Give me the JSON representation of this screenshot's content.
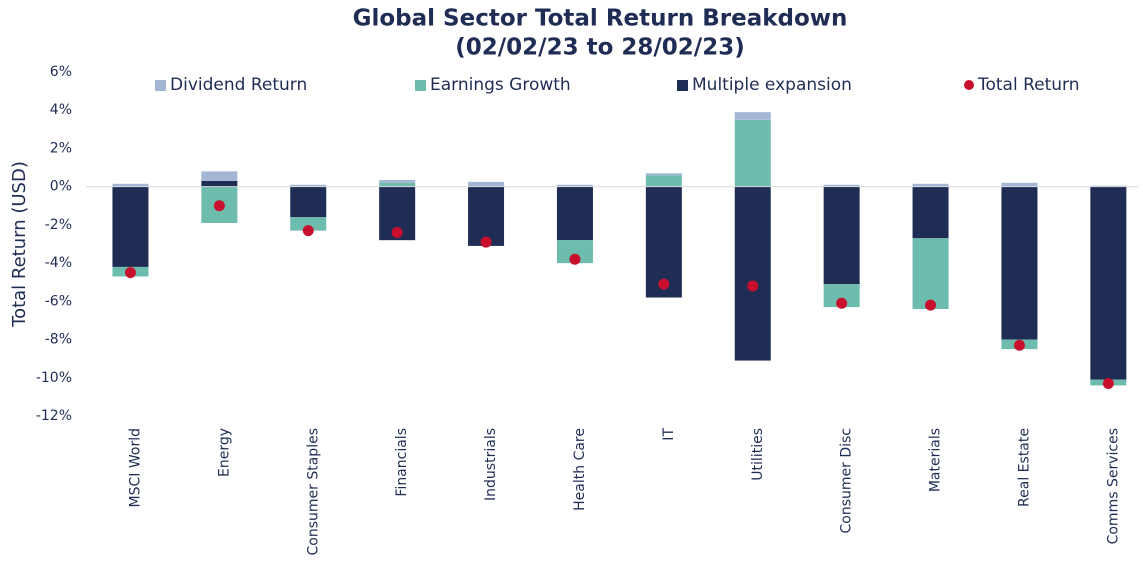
{
  "chart_data": {
    "type": "bar",
    "stacked": true,
    "title": "Global Sector Total Return Breakdown",
    "subtitle": "(02/02/23 to 28/02/23)",
    "y_label": "Total Return (USD)",
    "categories": [
      "MSCI World",
      "Energy",
      "Consumer Staples",
      "Financials",
      "Industrials",
      "Health Care",
      "IT",
      "Utilities",
      "Consumer Disc",
      "Materials",
      "Real Estate",
      "Comms Services"
    ],
    "series": [
      {
        "name": "Dividend Return",
        "color": "#a3b6d4",
        "values": [
          0.15,
          0.5,
          0.1,
          0.15,
          0.25,
          0.1,
          0.1,
          0.4,
          0.1,
          0.15,
          0.2,
          0.05
        ]
      },
      {
        "name": "Earnings Growth",
        "color": "#6dbcad",
        "values": [
          -0.5,
          -1.9,
          -0.7,
          0.2,
          0,
          -1.2,
          0.6,
          3.5,
          -1.2,
          -3.7,
          -0.5,
          -0.3
        ]
      },
      {
        "name": "Multiple expansion",
        "color": "#1f2d55",
        "values": [
          -4.2,
          0.3,
          -1.6,
          -2.8,
          -3.1,
          -2.8,
          -5.8,
          -9.1,
          -5.1,
          -2.7,
          -8.0,
          -10.1
        ]
      },
      {
        "name": "Total Return",
        "type": "scatter",
        "color": "#c8102e",
        "values": [
          -4.5,
          -1.0,
          -2.3,
          -2.4,
          -2.9,
          -3.8,
          -5.1,
          -5.2,
          -6.1,
          -6.2,
          -8.3,
          -10.3
        ]
      }
    ],
    "ylim": [
      -12,
      6
    ],
    "yticks": [
      {
        "value": -12,
        "label": "-12%"
      },
      {
        "value": -10,
        "label": "-10%"
      },
      {
        "value": -8,
        "label": "-8%"
      },
      {
        "value": -6,
        "label": "-6%"
      },
      {
        "value": -4,
        "label": "-4%"
      },
      {
        "value": -2,
        "label": "-2%"
      },
      {
        "value": 0,
        "label": "0%"
      },
      {
        "value": 2,
        "label": "2%"
      },
      {
        "value": 4,
        "label": "4%"
      },
      {
        "value": 6,
        "label": "6%"
      }
    ],
    "legend": "top"
  }
}
